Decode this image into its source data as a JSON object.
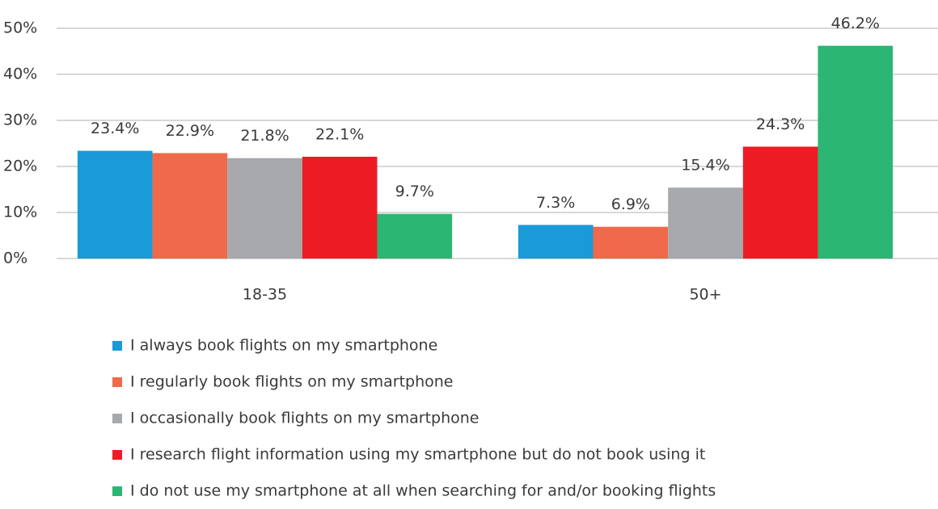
{
  "chart_data": {
    "type": "bar",
    "categories": [
      "18-35",
      "50+"
    ],
    "series": [
      {
        "name": "I always book flights on my smartphone",
        "color": "#1a9ad6",
        "values": [
          23.4,
          7.3
        ],
        "value_labels": [
          "23.4%",
          "7.3%"
        ]
      },
      {
        "name": "I regularly book flights on my smartphone",
        "color": "#f0694a",
        "values": [
          22.9,
          6.9
        ],
        "value_labels": [
          "22.9%",
          "6.9%"
        ]
      },
      {
        "name": "I occasionally book flights on my smartphone",
        "color": "#a7a9ac",
        "values": [
          21.8,
          15.4
        ],
        "value_labels": [
          "21.8%",
          "15.4%"
        ]
      },
      {
        "name": "I research flight information using my smartphone but do not book using it",
        "color": "#ed1c24",
        "values": [
          22.1,
          24.3
        ],
        "value_labels": [
          "22.1%",
          "24.3%"
        ]
      },
      {
        "name": "I do not use my smartphone at all when searching for and/or booking flights",
        "color": "#2bb673",
        "values": [
          9.7,
          46.2
        ],
        "value_labels": [
          "9.7%",
          "46.2%"
        ]
      }
    ],
    "ylim": [
      0,
      50
    ],
    "yticks": [
      {
        "value": 0,
        "label": "0%"
      },
      {
        "value": 10,
        "label": "10%"
      },
      {
        "value": 20,
        "label": "20%"
      },
      {
        "value": 30,
        "label": "30%"
      },
      {
        "value": 40,
        "label": "40%"
      },
      {
        "value": 50,
        "label": "50%"
      }
    ],
    "grid": true,
    "legend": "bottom"
  }
}
